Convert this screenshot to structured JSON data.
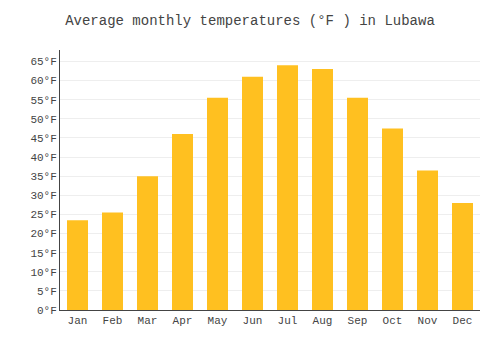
{
  "chart_data": {
    "type": "bar",
    "title": "Average monthly temperatures (°F ) in Lubawa",
    "categories": [
      "Jan",
      "Feb",
      "Mar",
      "Apr",
      "May",
      "Jun",
      "Jul",
      "Aug",
      "Sep",
      "Oct",
      "Nov",
      "Dec"
    ],
    "values": [
      23.5,
      25.5,
      35.0,
      46.0,
      55.5,
      61.0,
      64.0,
      63.0,
      55.5,
      47.5,
      36.5,
      28.0
    ],
    "color": "#FFC020",
    "ylim": [
      0,
      68
    ],
    "yticks": [
      {
        "value": 0,
        "label": "0°F"
      },
      {
        "value": 5,
        "label": "5°F"
      },
      {
        "value": 10,
        "label": "10°F"
      },
      {
        "value": 15,
        "label": "15°F"
      },
      {
        "value": 20,
        "label": "20°F"
      },
      {
        "value": 25,
        "label": "25°F"
      },
      {
        "value": 30,
        "label": "30°F"
      },
      {
        "value": 35,
        "label": "35°F"
      },
      {
        "value": 40,
        "label": "40°F"
      },
      {
        "value": 45,
        "label": "45°F"
      },
      {
        "value": 50,
        "label": "50°F"
      },
      {
        "value": 55,
        "label": "55°F"
      },
      {
        "value": 60,
        "label": "60°F"
      },
      {
        "value": 65,
        "label": "65°F"
      }
    ],
    "grid": true
  }
}
